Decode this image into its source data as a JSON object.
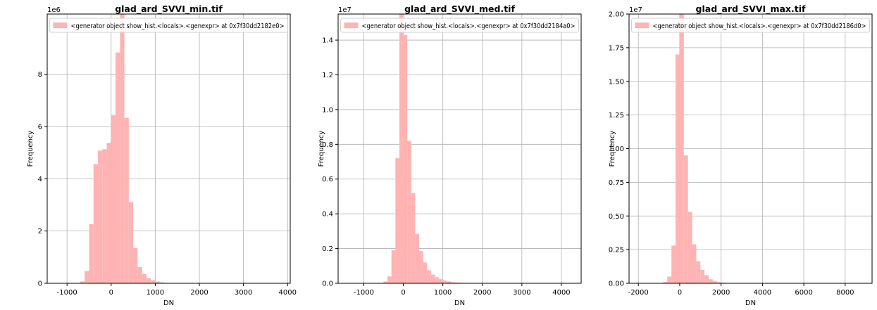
{
  "chart_data": [
    {
      "type": "bar",
      "title": "glad_ard_SVVI_min.tif",
      "xlabel": "DN",
      "ylabel": "Frequency",
      "multiplier": "1e6",
      "legend": "<generator object show_hist.<locals>.<genexpr> at 0x7f30dd2182e0>",
      "legend_position": "top",
      "grid": true,
      "color": "#ffb3b3",
      "xlim": [
        -1450,
        4060
      ],
      "ylim": [
        0,
        10.3
      ],
      "xticks": [
        -1000,
        0,
        1000,
        2000,
        3000,
        4000
      ],
      "yticks": [
        0,
        2,
        4,
        6,
        8
      ],
      "ytick_labels": [
        "0",
        "2",
        "4",
        "6",
        "8"
      ],
      "bin_width": 100,
      "bins": [
        {
          "x0": -700,
          "value": 0.07
        },
        {
          "x0": -600,
          "value": 0.47
        },
        {
          "x0": -500,
          "value": 2.26
        },
        {
          "x0": -400,
          "value": 4.56
        },
        {
          "x0": -300,
          "value": 5.08
        },
        {
          "x0": -200,
          "value": 5.13
        },
        {
          "x0": -100,
          "value": 5.37
        },
        {
          "x0": 0,
          "value": 6.44
        },
        {
          "x0": 100,
          "value": 8.83
        },
        {
          "x0": 200,
          "value": 10.3
        },
        {
          "x0": 300,
          "value": 6.33
        },
        {
          "x0": 400,
          "value": 3.11
        },
        {
          "x0": 500,
          "value": 1.35
        },
        {
          "x0": 600,
          "value": 0.62
        },
        {
          "x0": 700,
          "value": 0.36
        },
        {
          "x0": 800,
          "value": 0.2
        },
        {
          "x0": 900,
          "value": 0.12
        },
        {
          "x0": 1000,
          "value": 0.07
        },
        {
          "x0": 1100,
          "value": 0.04
        },
        {
          "x0": 1200,
          "value": 0.02
        },
        {
          "x0": 1300,
          "value": 0.01
        }
      ]
    },
    {
      "type": "bar",
      "title": "glad_ard_SVVI_med.tif",
      "xlabel": "DN",
      "ylabel": "Frequency",
      "multiplier": "1e7",
      "legend": "<generator object show_hist.<locals>.<genexpr> at 0x7f30dd2184a0>",
      "legend_position": "top",
      "grid": true,
      "color": "#ffb3b3",
      "xlim": [
        -1650,
        4500
      ],
      "ylim": [
        0,
        1.55
      ],
      "xticks": [
        -1000,
        0,
        1000,
        2000,
        3000,
        4000
      ],
      "yticks": [
        0,
        0.2,
        0.4,
        0.6,
        0.8,
        1.0,
        1.2,
        1.4
      ],
      "ytick_labels": [
        "0.0",
        "0.2",
        "0.4",
        "0.6",
        "0.8",
        "1.0",
        "1.2",
        "1.4"
      ],
      "bin_width": 100,
      "bins": [
        {
          "x0": -500,
          "value": 0.01
        },
        {
          "x0": -400,
          "value": 0.04
        },
        {
          "x0": -300,
          "value": 0.19
        },
        {
          "x0": -200,
          "value": 0.72
        },
        {
          "x0": -100,
          "value": 1.55
        },
        {
          "x0": 0,
          "value": 1.43
        },
        {
          "x0": 100,
          "value": 0.82
        },
        {
          "x0": 200,
          "value": 0.52
        },
        {
          "x0": 300,
          "value": 0.285
        },
        {
          "x0": 400,
          "value": 0.185
        },
        {
          "x0": 500,
          "value": 0.12
        },
        {
          "x0": 600,
          "value": 0.075
        },
        {
          "x0": 700,
          "value": 0.05
        },
        {
          "x0": 800,
          "value": 0.035
        },
        {
          "x0": 900,
          "value": 0.024
        },
        {
          "x0": 1000,
          "value": 0.016
        },
        {
          "x0": 1100,
          "value": 0.011
        },
        {
          "x0": 1200,
          "value": 0.007
        },
        {
          "x0": 1300,
          "value": 0.005
        },
        {
          "x0": 1400,
          "value": 0.004
        },
        {
          "x0": 1500,
          "value": 0.003
        },
        {
          "x0": 1600,
          "value": 0.002
        },
        {
          "x0": 1700,
          "value": 0.002
        }
      ]
    },
    {
      "type": "bar",
      "title": "glad_ard_SVVI_max.tif",
      "xlabel": "DN",
      "ylabel": "Frequency",
      "multiplier": "1e7",
      "legend": "<generator object show_hist.<locals>.<genexpr> at 0x7f30dd2186d0>",
      "legend_position": "top",
      "grid": true,
      "color": "#ffb3b3",
      "xlim": [
        -2450,
        9300
      ],
      "ylim": [
        0,
        2.0
      ],
      "xticks": [
        -2000,
        0,
        2000,
        4000,
        6000,
        8000
      ],
      "yticks": [
        0,
        0.25,
        0.5,
        0.75,
        1.0,
        1.25,
        1.5,
        1.75,
        2.0
      ],
      "ytick_labels": [
        "0.00",
        "0.25",
        "0.50",
        "0.75",
        "1.00",
        "1.25",
        "1.50",
        "1.75",
        "2.00"
      ],
      "bin_width": 200,
      "bins": [
        {
          "x0": -800,
          "value": 0.01
        },
        {
          "x0": -600,
          "value": 0.05
        },
        {
          "x0": -400,
          "value": 0.28
        },
        {
          "x0": -200,
          "value": 1.7
        },
        {
          "x0": 0,
          "value": 2.0
        },
        {
          "x0": 200,
          "value": 0.95
        },
        {
          "x0": 400,
          "value": 0.53
        },
        {
          "x0": 600,
          "value": 0.29
        },
        {
          "x0": 800,
          "value": 0.165
        },
        {
          "x0": 1000,
          "value": 0.1
        },
        {
          "x0": 1200,
          "value": 0.06
        },
        {
          "x0": 1400,
          "value": 0.03
        },
        {
          "x0": 1600,
          "value": 0.015
        },
        {
          "x0": 1800,
          "value": 0.008
        },
        {
          "x0": 2000,
          "value": 0.005
        },
        {
          "x0": 2200,
          "value": 0.003
        }
      ]
    }
  ]
}
